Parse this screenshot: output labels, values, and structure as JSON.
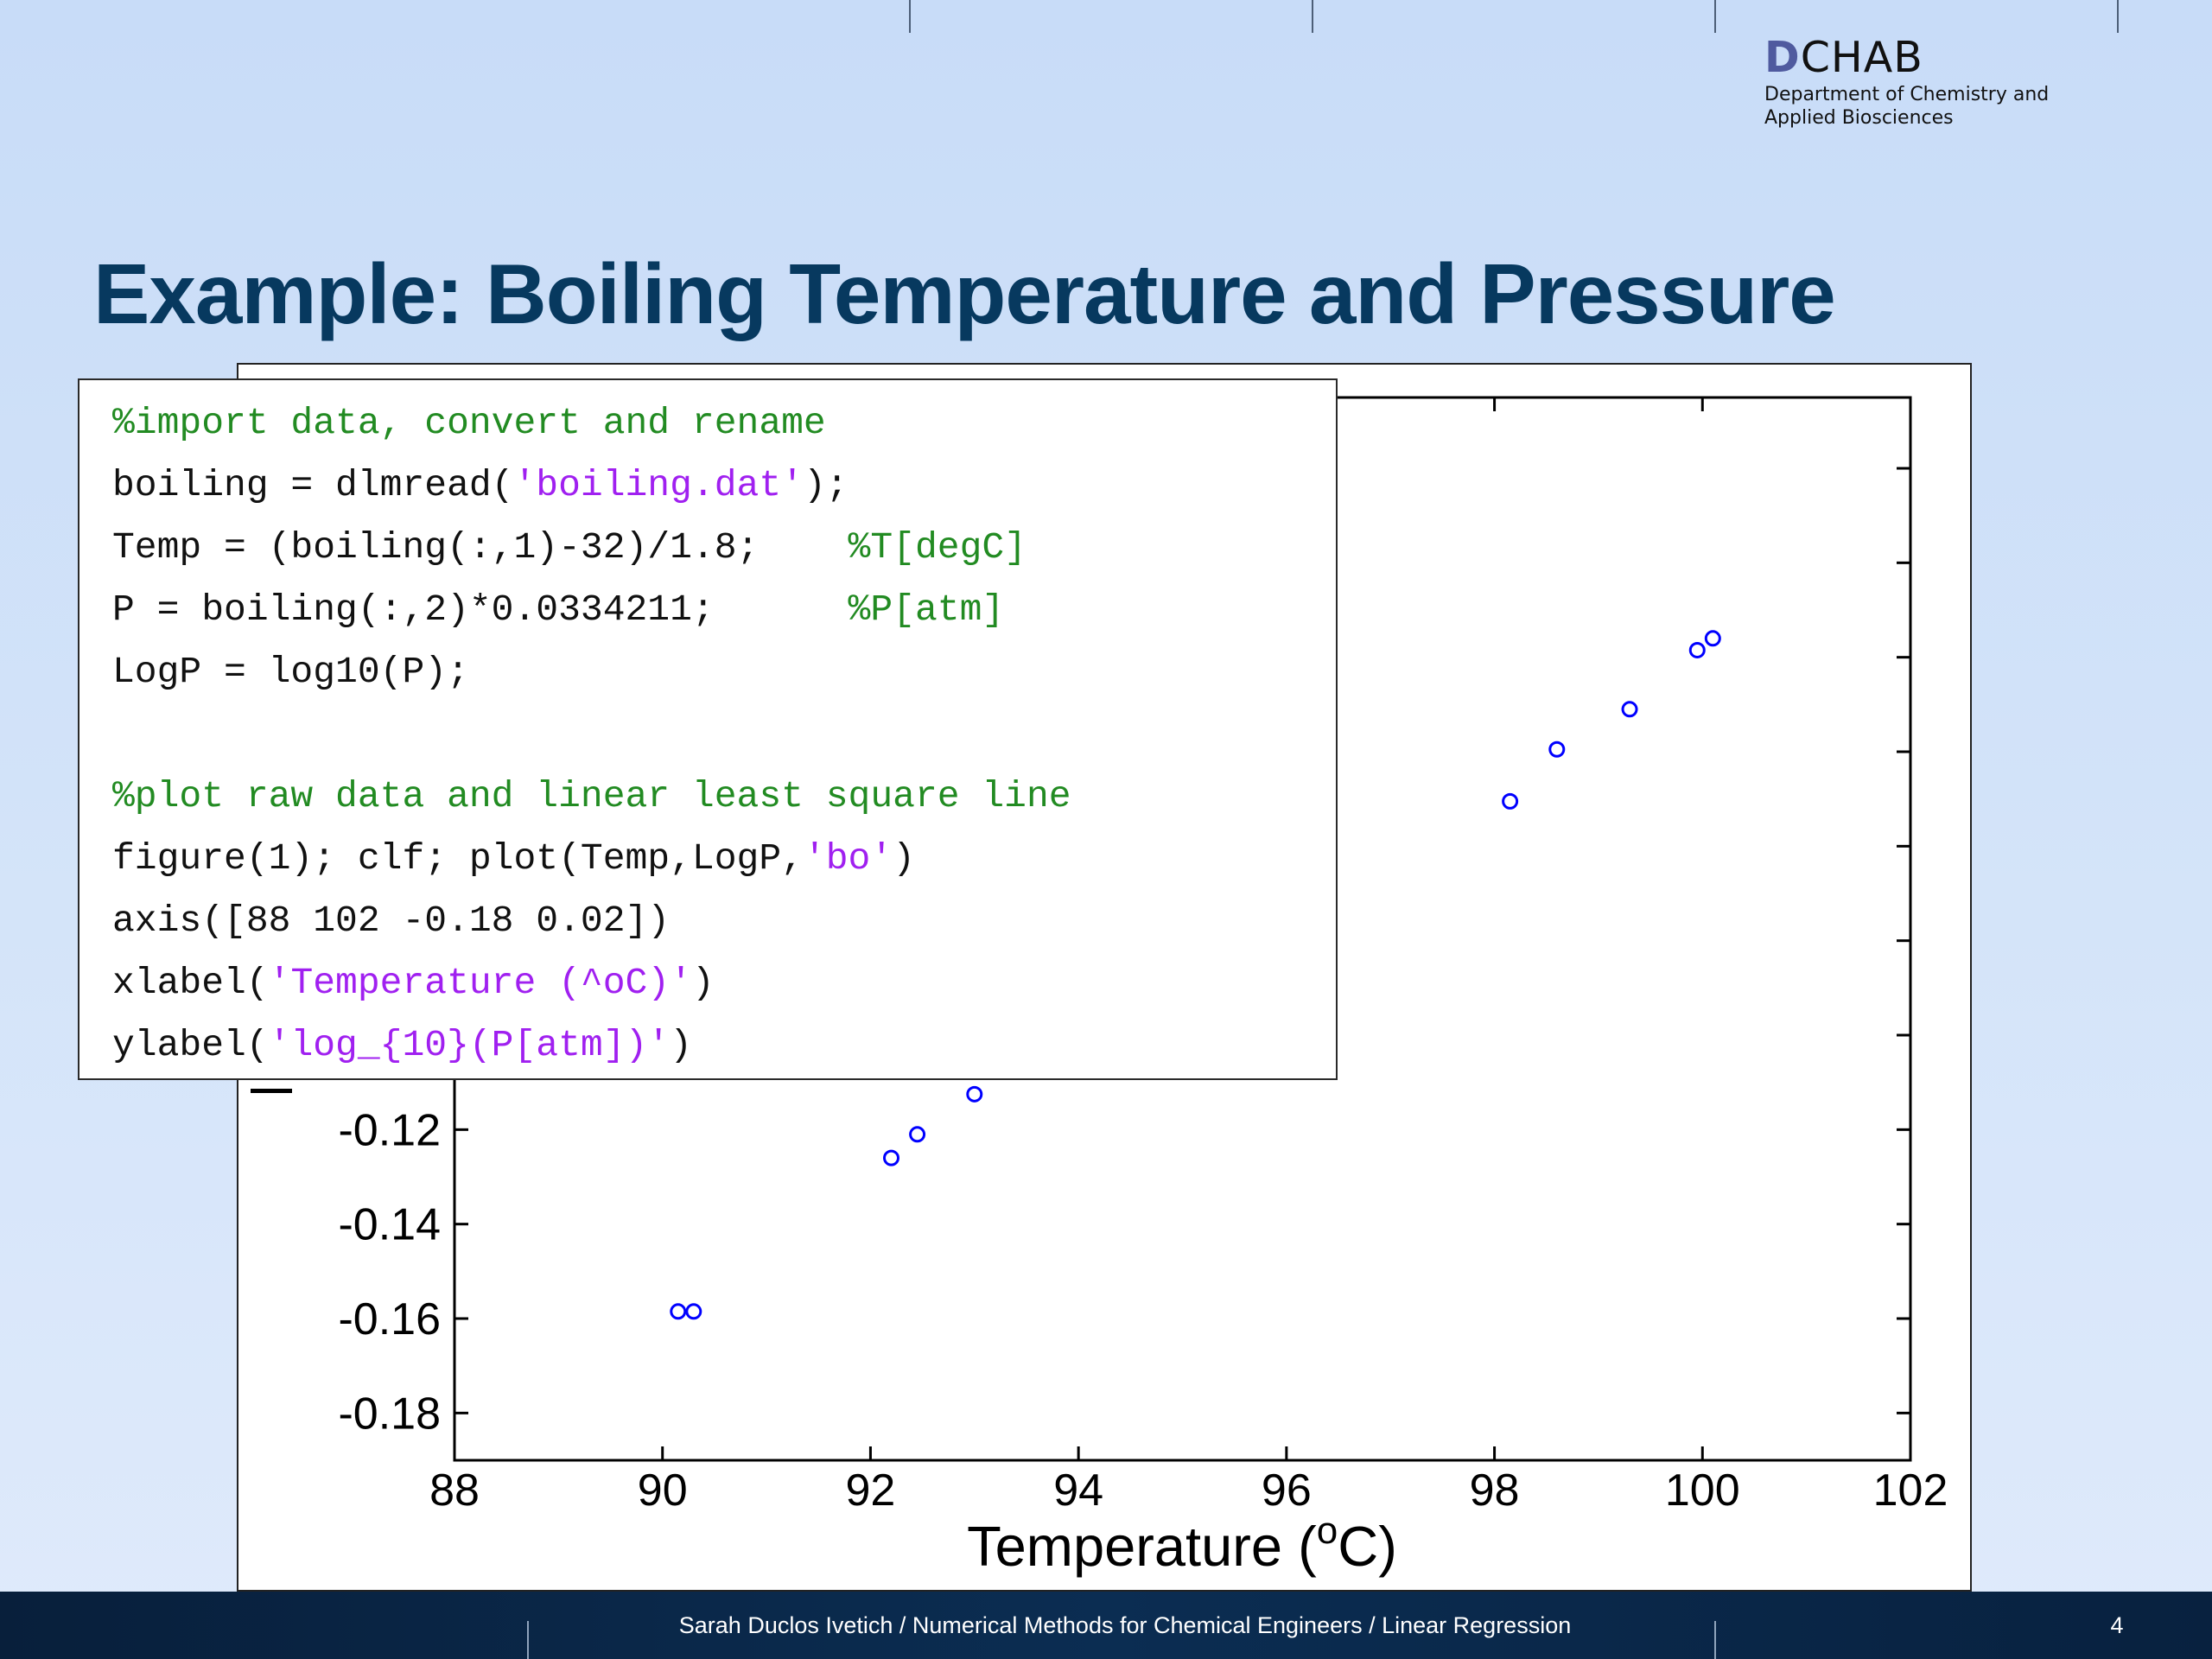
{
  "logo": {
    "brand_d": "D",
    "brand_rest": "CHAB",
    "line1": "Department of Chemistry and",
    "line2": "Applied Biosciences"
  },
  "slide": {
    "title": "Example: Boiling Temperature and Pressure",
    "page_number": "4"
  },
  "footer": {
    "text": "Sarah Duclos Ivetich / Numerical Methods for Chemical Engineers / Linear Regression"
  },
  "code": {
    "lines": [
      [
        {
          "t": "%import data, convert and rename",
          "c": "comment"
        }
      ],
      [
        {
          "t": "boiling = dlmread(",
          "c": "code"
        },
        {
          "t": "'boiling.dat'",
          "c": "str"
        },
        {
          "t": ");",
          "c": "code"
        }
      ],
      [
        {
          "t": "Temp = (boiling(:,1)-32)/1.8;    ",
          "c": "code"
        },
        {
          "t": "%T[degC]",
          "c": "comment"
        }
      ],
      [
        {
          "t": "P = boiling(:,2)*0.0334211;      ",
          "c": "code"
        },
        {
          "t": "%P[atm]",
          "c": "comment"
        }
      ],
      [
        {
          "t": "LogP = log10(P);",
          "c": "code"
        }
      ],
      [
        {
          "t": "",
          "c": "code"
        }
      ],
      [
        {
          "t": "%plot raw data and linear least square line",
          "c": "comment"
        }
      ],
      [
        {
          "t": "figure(1); clf; plot(Temp,LogP,",
          "c": "code"
        },
        {
          "t": "'bo'",
          "c": "str"
        },
        {
          "t": ")",
          "c": "code"
        }
      ],
      [
        {
          "t": "axis([88 102 -0.18 0.02])",
          "c": "code"
        }
      ],
      [
        {
          "t": "xlabel(",
          "c": "code"
        },
        {
          "t": "'Temperature (^oC)'",
          "c": "str"
        },
        {
          "t": ")",
          "c": "code"
        }
      ],
      [
        {
          "t": "ylabel(",
          "c": "code"
        },
        {
          "t": "'log_{10}(P[atm])'",
          "c": "str"
        },
        {
          "t": ")",
          "c": "code"
        }
      ]
    ]
  },
  "chart_data": {
    "type": "scatter",
    "xlabel": "Temperature (°C)",
    "xlabel_main": "Temperature (",
    "xlabel_degree": "o",
    "xlabel_unit": "C)",
    "xlim": [
      88,
      102
    ],
    "xticks": [
      88,
      90,
      92,
      94,
      96,
      98,
      100,
      102
    ],
    "xtick_labels": [
      "88",
      "90",
      "92",
      "94",
      "96",
      "98",
      "100",
      "102"
    ],
    "ylim": [
      -0.19,
      0.035
    ],
    "yticks": [
      -0.18,
      -0.16,
      -0.14,
      -0.12
    ],
    "ytick_labels": [
      "-0.18",
      "-0.16",
      "-0.14",
      "-0.12"
    ],
    "marker": "circle-open",
    "color": "#0000ff",
    "points": [
      {
        "x": 90.15,
        "y": -0.1585
      },
      {
        "x": 90.3,
        "y": -0.1585
      },
      {
        "x": 92.2,
        "y": -0.126
      },
      {
        "x": 92.45,
        "y": -0.121
      },
      {
        "x": 93.0,
        "y": -0.1125
      },
      {
        "x": 98.15,
        "y": -0.0505
      },
      {
        "x": 98.6,
        "y": -0.0395
      },
      {
        "x": 99.3,
        "y": -0.031
      },
      {
        "x": 99.95,
        "y": -0.0185
      },
      {
        "x": 100.1,
        "y": -0.016
      }
    ]
  }
}
